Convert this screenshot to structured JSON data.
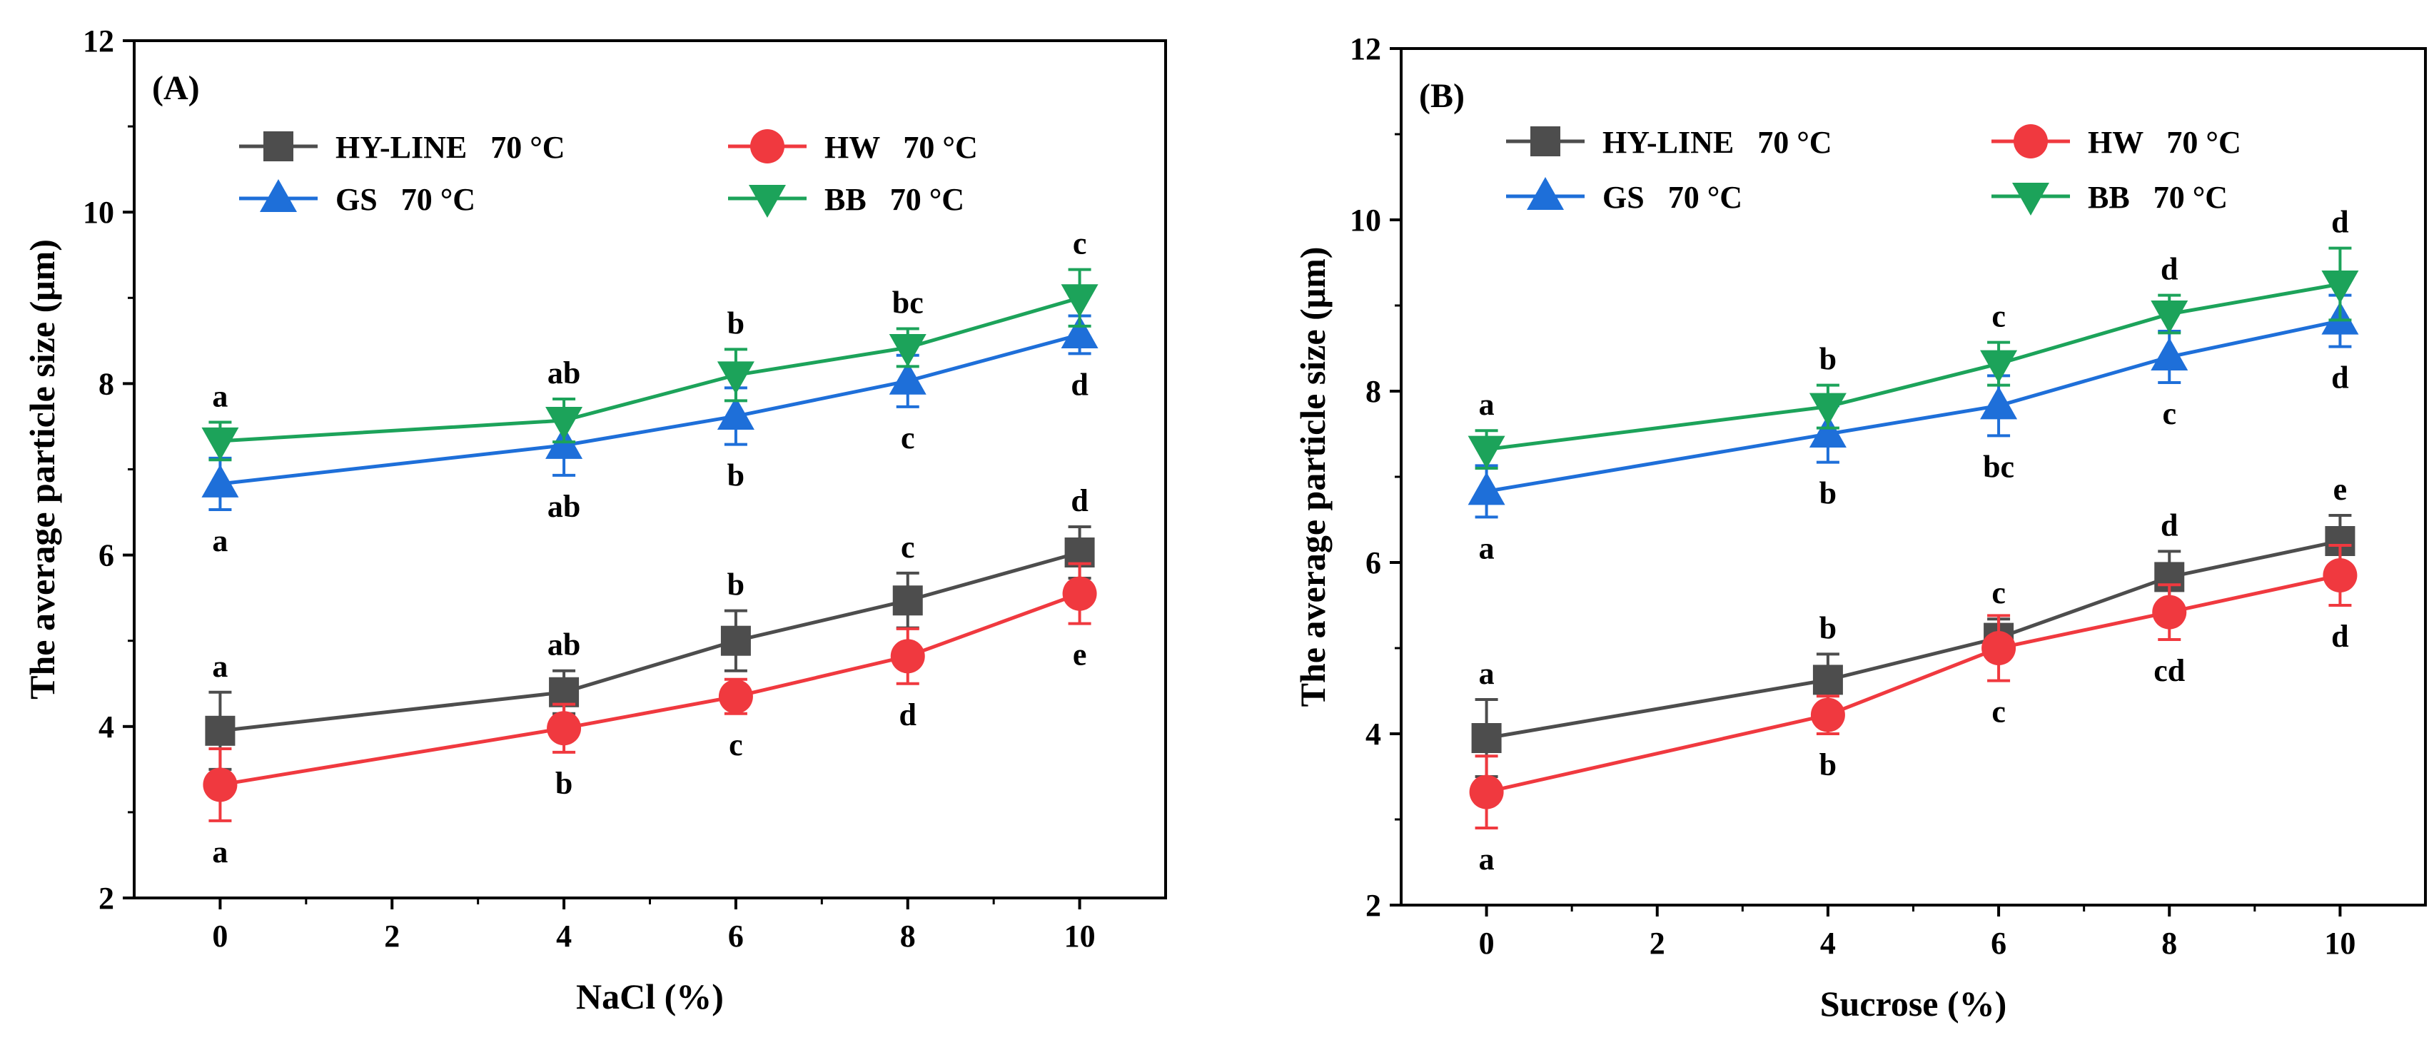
{
  "chart_data": [
    {
      "type": "line",
      "panel_label": "(A)",
      "xlabel": "NaCl (%)",
      "ylabel": "The average particle size (μm)",
      "xlim": [
        -1,
        11
      ],
      "ylim": [
        2,
        12
      ],
      "xticks": [
        "0",
        "2",
        "4",
        "6",
        "8",
        "10"
      ],
      "yticks": [
        "2",
        "4",
        "6",
        "8",
        "10",
        "12"
      ],
      "x": [
        0,
        4,
        6,
        8,
        10
      ],
      "series": [
        {
          "name": "HY-LINE   70 °C",
          "color": "#4d4d4d",
          "marker": "square",
          "values": [
            3.95,
            4.4,
            5.0,
            5.47,
            6.03
          ],
          "err": [
            0.45,
            0.25,
            0.35,
            0.32,
            0.3
          ],
          "letters": [
            "a",
            "ab",
            "b",
            "c",
            "d"
          ],
          "letter_pos": [
            "above",
            "above",
            "above",
            "above",
            "above"
          ]
        },
        {
          "name": "HW   70 °C",
          "color": "#f0393f",
          "marker": "circle",
          "values": [
            3.32,
            3.98,
            4.35,
            4.82,
            5.55
          ],
          "err": [
            0.42,
            0.28,
            0.2,
            0.32,
            0.35
          ],
          "letters": [
            "a",
            "b",
            "c",
            "d",
            "e"
          ],
          "letter_pos": [
            "below",
            "below",
            "below",
            "below",
            "below"
          ]
        },
        {
          "name": "GS   70 °C",
          "color": "#1e6fd9",
          "marker": "triangle-up",
          "values": [
            6.83,
            7.28,
            7.62,
            8.03,
            8.57
          ],
          "err": [
            0.3,
            0.35,
            0.33,
            0.3,
            0.22
          ],
          "letters": [
            "a",
            "ab",
            "b",
            "c",
            "d"
          ],
          "letter_pos": [
            "below",
            "below",
            "below",
            "below",
            "below"
          ]
        },
        {
          "name": "BB   70 °C",
          "color": "#1ca35a",
          "marker": "triangle-down",
          "values": [
            7.33,
            7.57,
            8.1,
            8.42,
            9.0
          ],
          "err": [
            0.22,
            0.25,
            0.3,
            0.22,
            0.33
          ],
          "letters": [
            "a",
            "ab",
            "b",
            "bc",
            "c"
          ],
          "letter_pos": [
            "above",
            "above",
            "above",
            "above",
            "above"
          ]
        }
      ]
    },
    {
      "type": "line",
      "panel_label": "(B)",
      "xlabel": "Sucrose (%)",
      "ylabel": "The average particle size (μm)",
      "xlim": [
        -1,
        11
      ],
      "ylim": [
        2,
        12
      ],
      "xticks": [
        "0",
        "2",
        "4",
        "6",
        "8",
        "10"
      ],
      "yticks": [
        "2",
        "4",
        "6",
        "8",
        "10",
        "12"
      ],
      "x": [
        0,
        4,
        6,
        8,
        10
      ],
      "series": [
        {
          "name": "HY-LINE   70 °C",
          "color": "#4d4d4d",
          "marker": "square",
          "values": [
            3.95,
            4.63,
            5.12,
            5.83,
            6.25
          ],
          "err": [
            0.45,
            0.3,
            0.22,
            0.3,
            0.3
          ],
          "letters": [
            "a",
            "b",
            "c",
            "d",
            "e"
          ],
          "letter_pos": [
            "above",
            "above",
            "above",
            "above",
            "above"
          ]
        },
        {
          "name": "HW   70 °C",
          "color": "#f0393f",
          "marker": "circle",
          "values": [
            3.32,
            4.22,
            5.0,
            5.42,
            5.85
          ],
          "err": [
            0.42,
            0.22,
            0.38,
            0.32,
            0.35
          ],
          "letters": [
            "a",
            "b",
            "c",
            "cd",
            "d"
          ],
          "letter_pos": [
            "below",
            "below",
            "below",
            "below",
            "below"
          ]
        },
        {
          "name": "GS   70 °C",
          "color": "#1e6fd9",
          "marker": "triangle-up",
          "values": [
            6.83,
            7.5,
            7.83,
            8.4,
            8.82
          ],
          "err": [
            0.3,
            0.33,
            0.35,
            0.3,
            0.3
          ],
          "letters": [
            "a",
            "b",
            "bc",
            "c",
            "d"
          ],
          "letter_pos": [
            "below",
            "below",
            "below",
            "below",
            "below"
          ]
        },
        {
          "name": "BB   70 °C",
          "color": "#1ca35a",
          "marker": "triangle-down",
          "values": [
            7.32,
            7.82,
            8.32,
            8.9,
            9.25
          ],
          "err": [
            0.22,
            0.25,
            0.25,
            0.22,
            0.42
          ],
          "letters": [
            "a",
            "b",
            "c",
            "d",
            "d"
          ],
          "letter_pos": [
            "above",
            "above",
            "above",
            "above",
            "above"
          ]
        }
      ]
    }
  ]
}
